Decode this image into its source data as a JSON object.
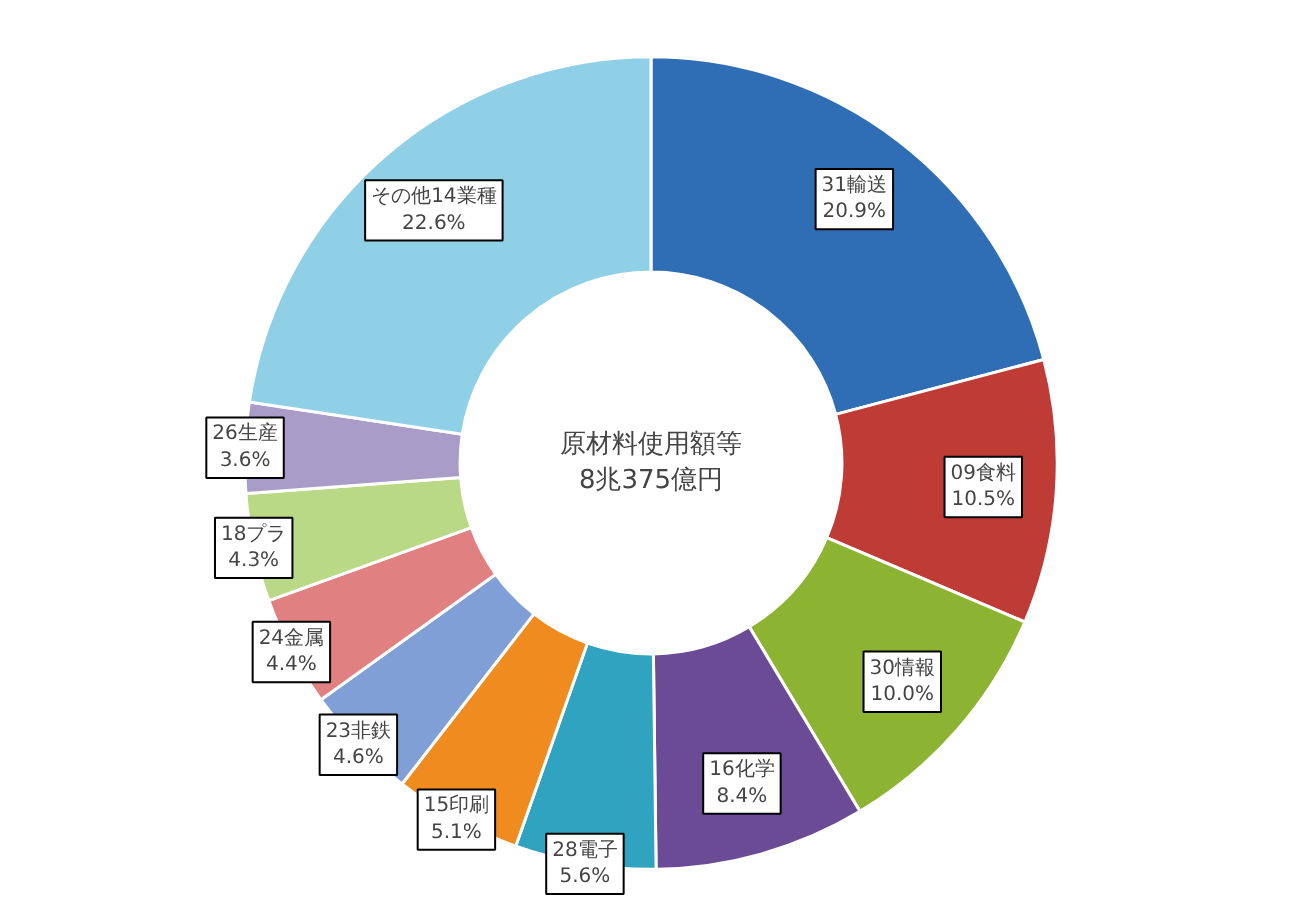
{
  "chart_data": {
    "type": "donut",
    "categories": [
      "31輸送",
      "09食料",
      "30情報",
      "16化学",
      "28電子",
      "15印刷",
      "23非鉄",
      "24金属",
      "18プラ",
      "26生産",
      "その他14業種"
    ],
    "values": [
      20.9,
      10.5,
      10.0,
      8.4,
      5.6,
      5.1,
      4.6,
      4.4,
      4.3,
      3.6,
      22.6
    ],
    "value_labels": [
      "20.9%",
      "10.5%",
      "10.0%",
      "8.4%",
      "5.6%",
      "5.1%",
      "4.6%",
      "4.4%",
      "4.3%",
      "3.6%",
      "22.6%"
    ],
    "colors": [
      "#2f6db5",
      "#bf3b35",
      "#8db332",
      "#6b4b95",
      "#2fa3c0",
      "#f08b1f",
      "#809fd6",
      "#e08080",
      "#bad986",
      "#a99cc9",
      "#90d0e6"
    ],
    "annotations": [
      "原材料使用額等\n8兆375億円"
    ]
  }
}
